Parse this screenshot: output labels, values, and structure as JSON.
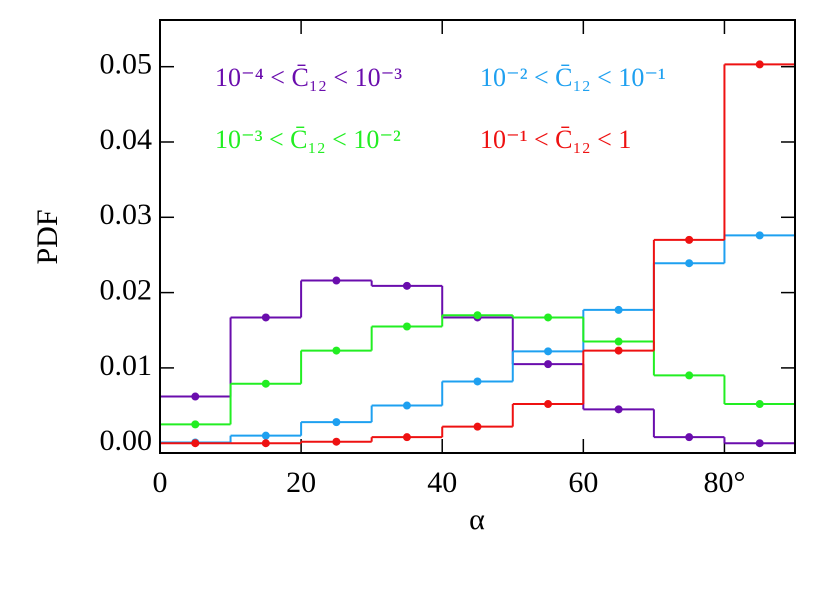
{
  "chart_data": {
    "type": "histogram",
    "x_label": "α",
    "y_label": "PDF",
    "bins": [
      0,
      10,
      20,
      30,
      40,
      50,
      60,
      70,
      80,
      90
    ],
    "series": [
      {
        "name": "10⁻⁴ < C̄₁₂ < 10⁻³",
        "color": "#6a0dad",
        "values": [
          0.0062,
          0.0167,
          0.0216,
          0.0209,
          0.0167,
          0.0105,
          0.0045,
          0.0008,
          0.0
        ]
      },
      {
        "name": "10⁻² < C̄₁₂ < 10⁻¹",
        "color": "#1ea0f0",
        "values": [
          0.0001,
          0.001,
          0.0028,
          0.005,
          0.0082,
          0.0122,
          0.0177,
          0.0239,
          0.0276
        ]
      },
      {
        "name": "10⁻³ < C̄₁₂ < 10⁻²",
        "color": "#22ee22",
        "values": [
          0.0025,
          0.0079,
          0.0123,
          0.0155,
          0.017,
          0.0167,
          0.0135,
          0.009,
          0.0052
        ]
      },
      {
        "name": "10⁻¹ < C̄₁₂ < 1",
        "color": "#ee1111",
        "values": [
          0.0,
          0.0,
          0.0002,
          0.0008,
          0.0022,
          0.0052,
          0.0123,
          0.027,
          0.0503
        ]
      }
    ],
    "xlim": [
      0,
      90
    ],
    "xticks": [
      0,
      20,
      40,
      60,
      {
        "value": 80,
        "label": "80°"
      }
    ],
    "ylim": [
      -0.0013,
      0.0562
    ],
    "yticks": [
      {
        "value": 0,
        "label": "0.00"
      },
      0.01,
      0.02,
      0.03,
      0.04,
      0.05
    ],
    "legend": "top"
  }
}
